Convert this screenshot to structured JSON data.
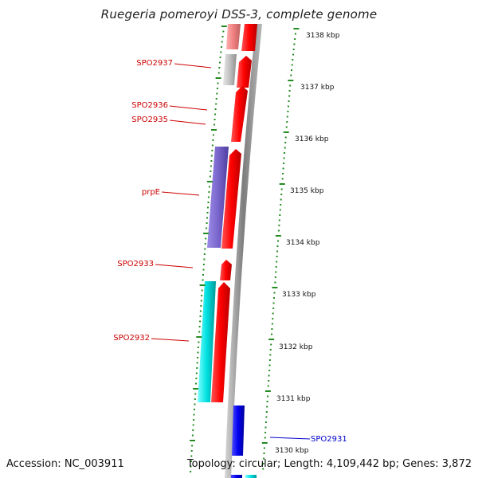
{
  "title": "Ruegeria pomeroyi DSS-3, complete genome",
  "footer": {
    "accession": "Accession: NC_003911",
    "topology": "Topology: circular; Length: 4,109,442 bp; Genes: 3,872"
  },
  "colors": {
    "forward": "#ff0000",
    "reverse_gray": "#c0c0c0",
    "reverse_pink": "#f08080",
    "reverse_purple": "#7a66cc",
    "reverse_cyan": "#00e0e0",
    "forward_blue": "#0000ee",
    "tick": "#228b22",
    "label_red": "#cc0000",
    "label_blue": "#0000cc"
  },
  "scale_labels": [
    "3138 kbp",
    "3137 kbp",
    "3136 kbp",
    "3135 kbp",
    "3134 kbp",
    "3133 kbp",
    "3132 kbp",
    "3131 kbp",
    "3130 kbp"
  ],
  "gene_labels": [
    {
      "text": "SPO2937",
      "color": "label_red"
    },
    {
      "text": "SPO2936",
      "color": "label_red"
    },
    {
      "text": "SPO2935",
      "color": "label_red"
    },
    {
      "text": "prpE",
      "color": "label_red"
    },
    {
      "text": "SPO2933",
      "color": "label_red"
    },
    {
      "text": "SPO2932",
      "color": "label_red"
    },
    {
      "text": "SPO2931",
      "color": "label_blue"
    }
  ]
}
